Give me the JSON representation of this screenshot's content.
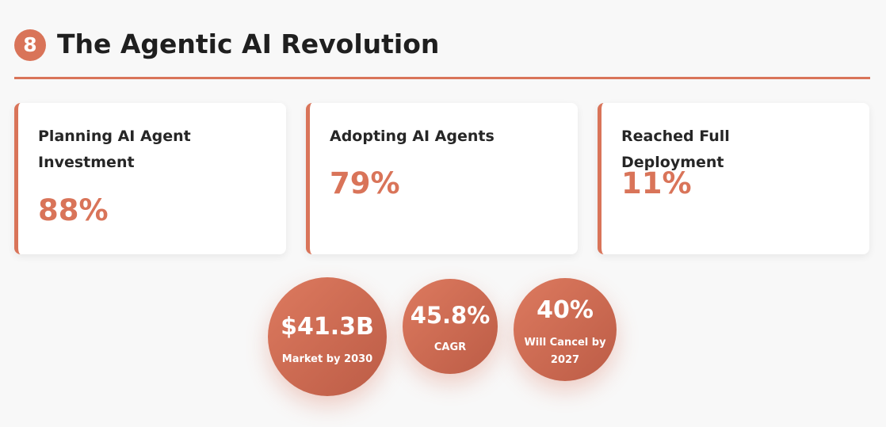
{
  "header": {
    "number": "8",
    "title": "The Agentic AI Revolution"
  },
  "cards": [
    {
      "label": "Planning AI Agent Investment",
      "value": "88%"
    },
    {
      "label": "Adopting AI Agents",
      "value": "79%"
    },
    {
      "label": "Reached Full Deployment",
      "value": "11%"
    }
  ],
  "stats": [
    {
      "value": "$41.3B",
      "label": "Market by 2030"
    },
    {
      "value": "45.8%",
      "label": "CAGR"
    },
    {
      "value": "40%",
      "label": "Will Cancel by 2027"
    }
  ],
  "colors": {
    "accent": "#d97459",
    "accent_dark": "#bc5c46",
    "background": "#f8f8f8",
    "card": "#ffffff",
    "text": "#1f1f1f"
  }
}
